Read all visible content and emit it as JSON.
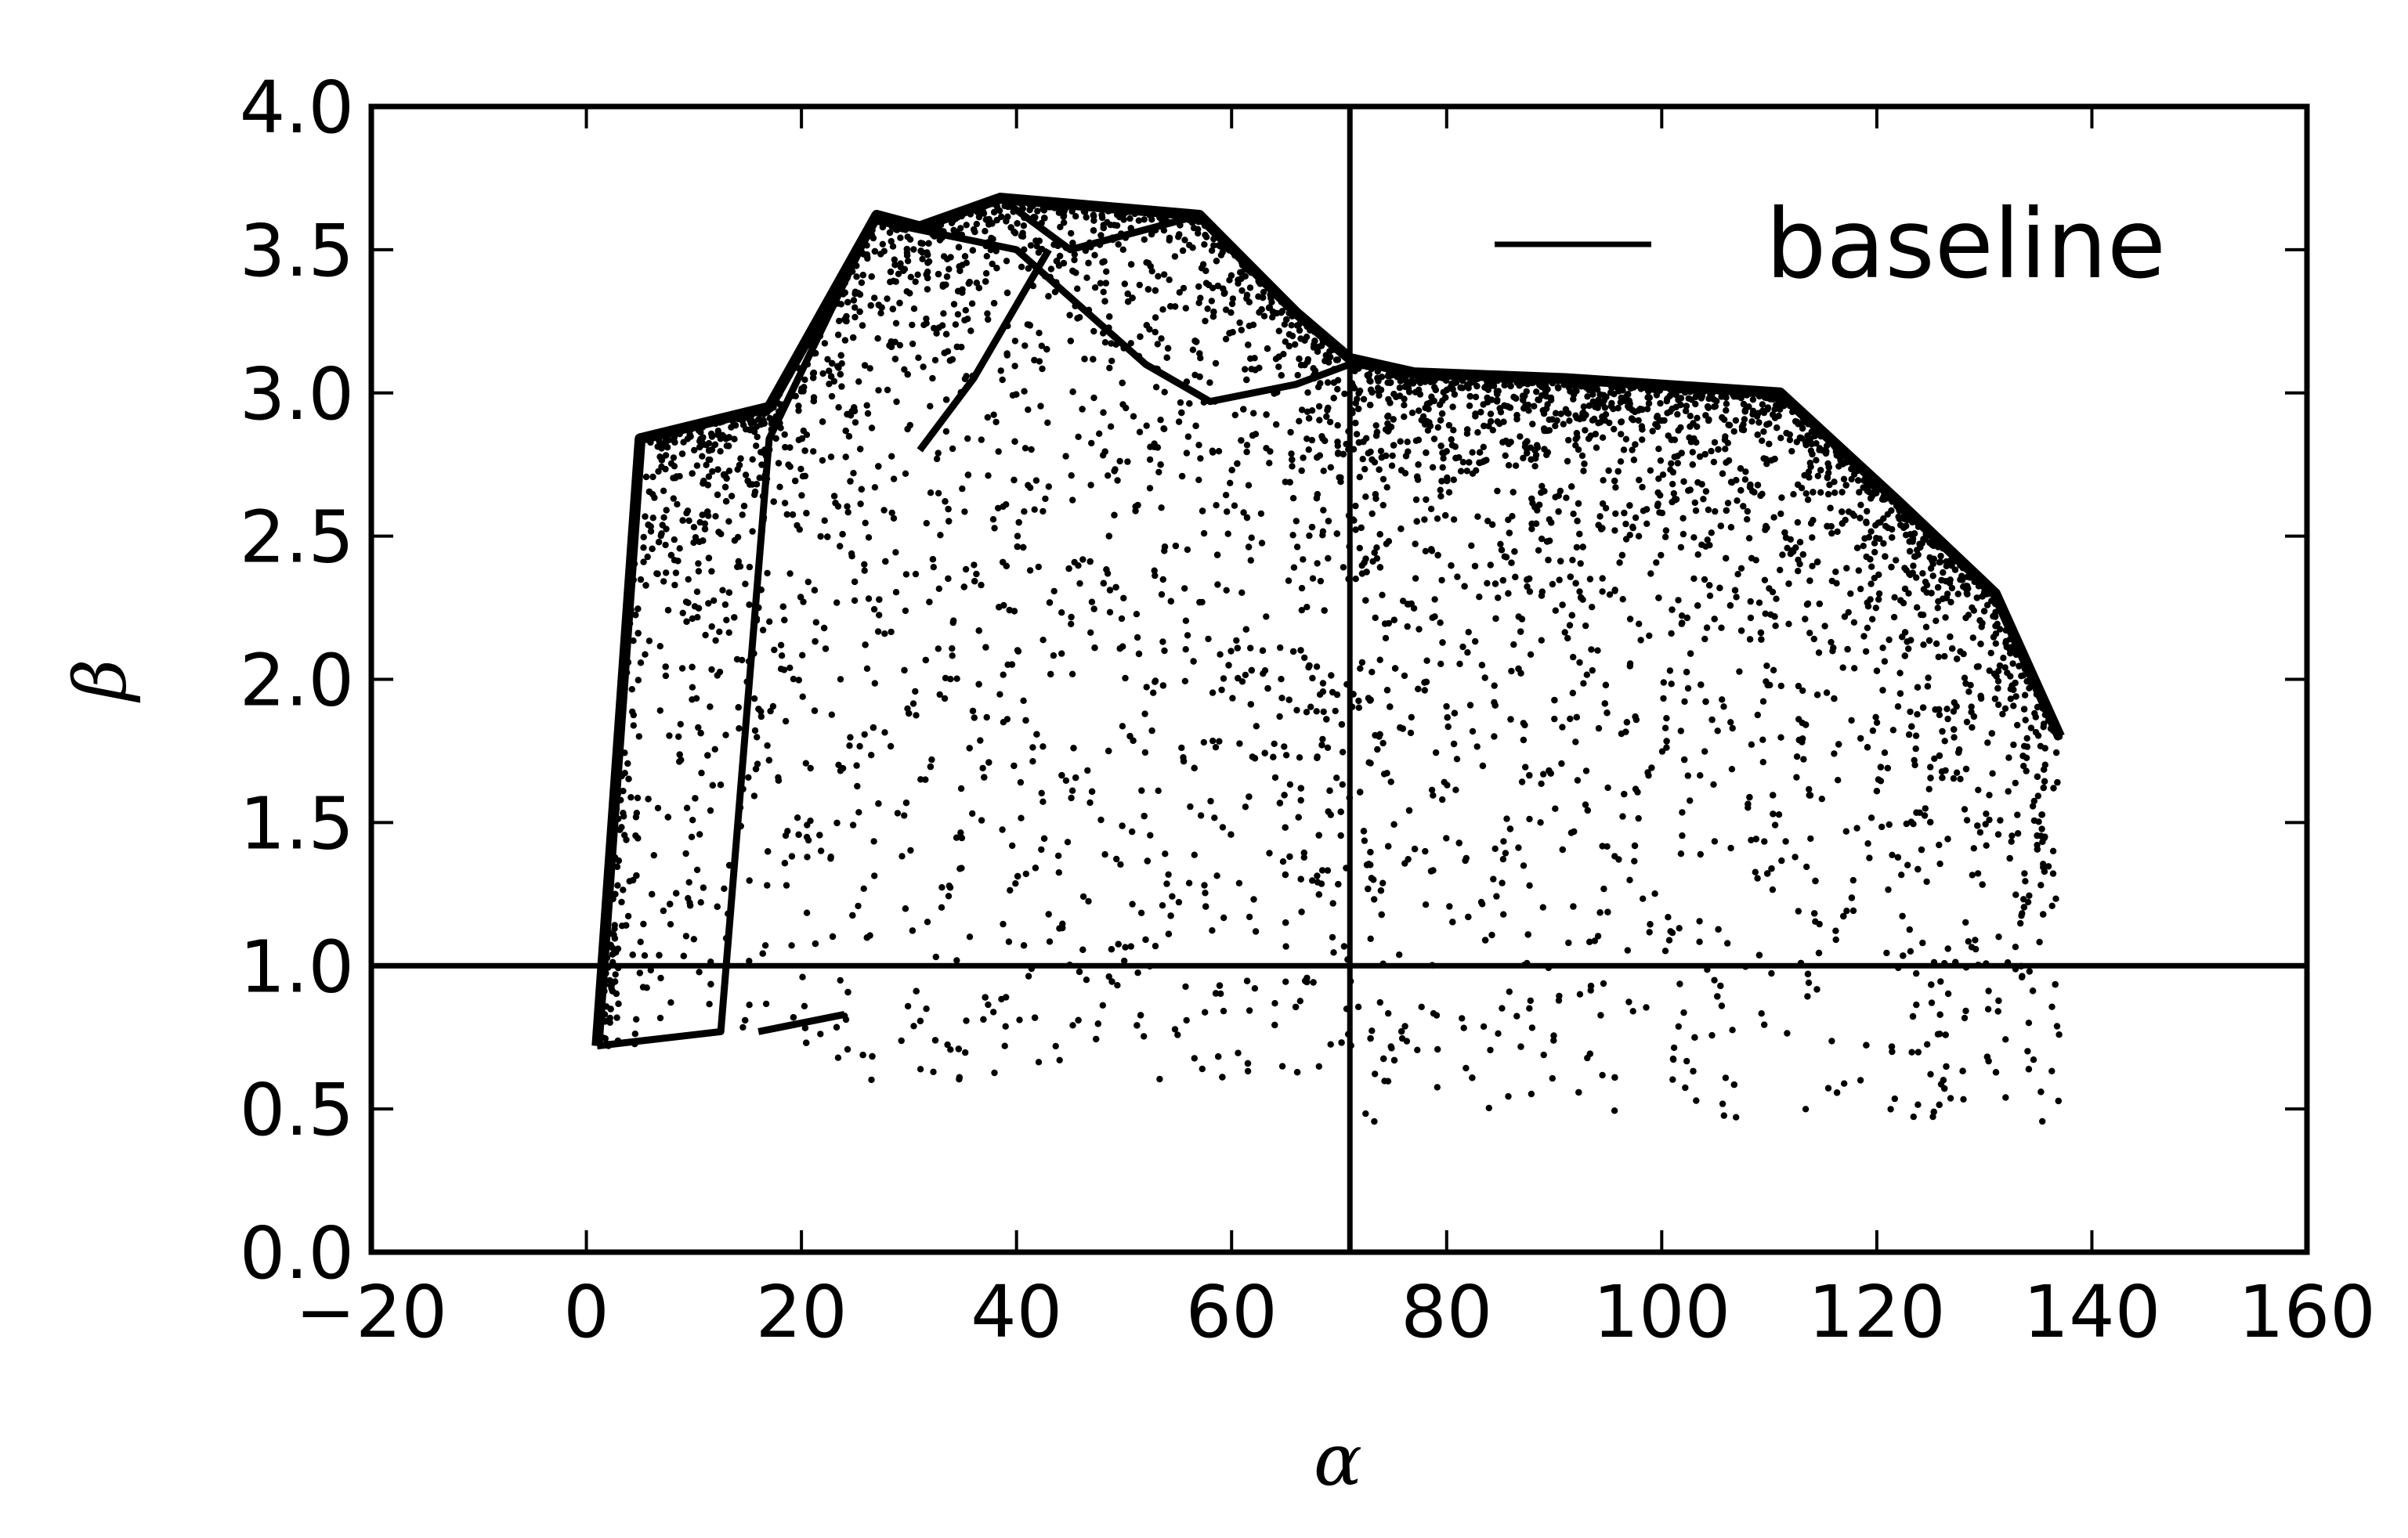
{
  "chart_data": {
    "type": "scatter",
    "xlabel": "α",
    "ylabel": "β",
    "xlim": [
      -20,
      160
    ],
    "ylim": [
      0,
      4.0
    ],
    "x_ticks": [
      -20,
      0,
      20,
      40,
      60,
      80,
      100,
      120,
      140,
      160
    ],
    "x_tick_labels": [
      "−20",
      "0",
      "20",
      "40",
      "60",
      "80",
      "100",
      "120",
      140,
      160
    ],
    "y_ticks": [
      0,
      0.5,
      1.0,
      1.5,
      2.0,
      2.5,
      3.0,
      3.5,
      4.0
    ],
    "y_tick_labels": [
      "0.0",
      "0.5",
      "1.0",
      "1.5",
      "2.0",
      "2.5",
      "3.0",
      "3.5",
      "4.0"
    ],
    "grid": false,
    "legend": {
      "position": "top-right",
      "entries": [
        "baseline"
      ]
    },
    "baseline": {
      "name": "baseline",
      "x": 71,
      "y": 1.0
    },
    "frontier": {
      "x": [
        1,
        5,
        17,
        27,
        31,
        38.5,
        57,
        66,
        71,
        77,
        91,
        111,
        122,
        131,
        137
      ],
      "y": [
        0.72,
        2.84,
        2.95,
        3.62,
        3.58,
        3.68,
        3.62,
        3.28,
        3.12,
        3.07,
        3.05,
        3.0,
        2.62,
        2.3,
        1.8
      ]
    },
    "secondary_curves": [
      {
        "x": [
          1,
          12.5,
          17,
          27
        ],
        "y": [
          0.72,
          0.77,
          2.84,
          3.62
        ]
      },
      {
        "x": [
          16,
          24
        ],
        "y": [
          0.77,
          0.83
        ]
      },
      {
        "x": [
          27,
          40,
          52,
          58,
          66,
          71
        ],
        "y": [
          3.6,
          3.5,
          3.1,
          2.97,
          3.03,
          3.1
        ]
      },
      {
        "x": [
          38.5,
          45,
          57
        ],
        "y": [
          3.68,
          3.5,
          3.62
        ]
      },
      {
        "x": [
          43,
          36,
          31
        ],
        "y": [
          3.5,
          3.05,
          2.8
        ]
      }
    ],
    "scatter": {
      "description": "dense cloud of sampled points bounded by the frontier",
      "count": 7000
    }
  }
}
